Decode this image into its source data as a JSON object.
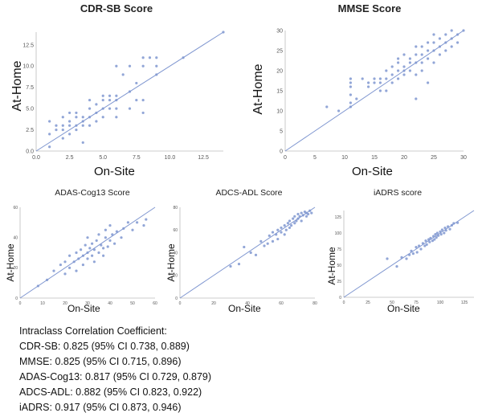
{
  "chart_data": [
    {
      "type": "scatter",
      "title": "CDR-SB Score",
      "xlabel": "On-Site",
      "ylabel": "At-Home",
      "xlim": [
        0,
        14
      ],
      "ylim": [
        0,
        14
      ],
      "xticks": [
        0,
        2.5,
        5,
        7.5,
        10,
        12.5
      ],
      "xtick_labels": [
        "0.0",
        "2.5",
        "5.0",
        "7.5",
        "10.0",
        "12.5"
      ],
      "yticks": [
        0,
        2.5,
        5,
        7.5,
        10,
        12.5
      ],
      "ytick_labels": [
        "0.0",
        "2.5",
        "5.0",
        "7.5",
        "10.0",
        "12.5"
      ],
      "identity_line": true,
      "grid": false,
      "points": [
        [
          1,
          0.5
        ],
        [
          1,
          2
        ],
        [
          1,
          3.5
        ],
        [
          1.5,
          2.5
        ],
        [
          1.5,
          3
        ],
        [
          2,
          1.5
        ],
        [
          2,
          2.5
        ],
        [
          2,
          3
        ],
        [
          2,
          4
        ],
        [
          2.5,
          2
        ],
        [
          2.5,
          3
        ],
        [
          2.5,
          3.5
        ],
        [
          2.5,
          4.5
        ],
        [
          3,
          2.5
        ],
        [
          3,
          3
        ],
        [
          3,
          4
        ],
        [
          3,
          4.5
        ],
        [
          3.5,
          1
        ],
        [
          3.5,
          3
        ],
        [
          3.5,
          3.5
        ],
        [
          3.5,
          4
        ],
        [
          4,
          3
        ],
        [
          4,
          4
        ],
        [
          4,
          5
        ],
        [
          4,
          6
        ],
        [
          4.5,
          3.5
        ],
        [
          4.5,
          4.5
        ],
        [
          4.5,
          5.5
        ],
        [
          5,
          4
        ],
        [
          5,
          5
        ],
        [
          5,
          6
        ],
        [
          5,
          6.5
        ],
        [
          5.5,
          5
        ],
        [
          5.5,
          6
        ],
        [
          5.5,
          6.5
        ],
        [
          6,
          4
        ],
        [
          6,
          5
        ],
        [
          6,
          6
        ],
        [
          6,
          6.5
        ],
        [
          6,
          10
        ],
        [
          6.5,
          9
        ],
        [
          7,
          5
        ],
        [
          7,
          7
        ],
        [
          7,
          10
        ],
        [
          7.5,
          6
        ],
        [
          7.5,
          8
        ],
        [
          8,
          4.5
        ],
        [
          8,
          6
        ],
        [
          8,
          10
        ],
        [
          8,
          11
        ],
        [
          8.5,
          11
        ],
        [
          9,
          9
        ],
        [
          9,
          10
        ],
        [
          9,
          11
        ],
        [
          11,
          11
        ],
        [
          14,
          14
        ]
      ]
    },
    {
      "type": "scatter",
      "title": "MMSE Score",
      "xlabel": "On-Site",
      "ylabel": "At-Home",
      "xlim": [
        0,
        30
      ],
      "ylim": [
        0,
        30
      ],
      "xticks": [
        0,
        5,
        10,
        15,
        20,
        25,
        30
      ],
      "xtick_labels": [
        "0",
        "5",
        "10",
        "15",
        "20",
        "25",
        "30"
      ],
      "yticks": [
        0,
        5,
        10,
        15,
        20,
        25,
        30
      ],
      "ytick_labels": [
        "0",
        "5",
        "10",
        "15",
        "20",
        "25",
        "30"
      ],
      "identity_line": true,
      "grid": false,
      "points": [
        [
          7,
          11
        ],
        [
          9,
          10
        ],
        [
          11,
          11
        ],
        [
          11,
          12
        ],
        [
          11,
          14
        ],
        [
          11,
          16
        ],
        [
          11,
          17
        ],
        [
          11,
          18
        ],
        [
          12,
          13
        ],
        [
          13,
          18
        ],
        [
          14,
          16
        ],
        [
          14,
          17
        ],
        [
          15,
          17
        ],
        [
          15,
          18
        ],
        [
          16,
          15
        ],
        [
          16,
          17
        ],
        [
          16,
          18
        ],
        [
          17,
          15
        ],
        [
          17,
          18
        ],
        [
          17,
          20
        ],
        [
          18,
          17
        ],
        [
          18,
          19
        ],
        [
          18,
          21
        ],
        [
          19,
          18
        ],
        [
          19,
          20
        ],
        [
          19,
          22
        ],
        [
          19,
          23
        ],
        [
          20,
          19
        ],
        [
          20,
          20
        ],
        [
          20,
          21
        ],
        [
          20,
          24
        ],
        [
          21,
          20
        ],
        [
          21,
          22
        ],
        [
          21,
          23
        ],
        [
          22,
          13
        ],
        [
          22,
          19
        ],
        [
          22,
          22
        ],
        [
          22,
          24
        ],
        [
          22,
          26
        ],
        [
          23,
          20
        ],
        [
          23,
          22
        ],
        [
          23,
          24
        ],
        [
          23,
          26
        ],
        [
          24,
          17
        ],
        [
          24,
          23
        ],
        [
          24,
          25
        ],
        [
          24,
          27
        ],
        [
          25,
          22
        ],
        [
          25,
          25
        ],
        [
          25,
          27
        ],
        [
          25,
          29
        ],
        [
          26,
          24
        ],
        [
          26,
          26
        ],
        [
          26,
          28
        ],
        [
          27,
          25
        ],
        [
          27,
          27
        ],
        [
          27,
          29
        ],
        [
          28,
          26
        ],
        [
          28,
          28
        ],
        [
          28,
          30
        ],
        [
          29,
          27
        ],
        [
          29,
          29
        ],
        [
          30,
          30
        ]
      ]
    },
    {
      "type": "scatter",
      "title": "ADAS-Cog13 Score",
      "xlabel": "On-Site",
      "ylabel": "At-Home",
      "xlim": [
        0,
        60
      ],
      "ylim": [
        0,
        60
      ],
      "xticks": [
        0,
        10,
        20,
        30,
        40,
        50,
        60
      ],
      "xtick_labels": [
        "0",
        "10",
        "20",
        "30",
        "40",
        "50",
        "60"
      ],
      "yticks": [
        0,
        20,
        40,
        60
      ],
      "ytick_labels": [
        "0",
        "20",
        "40",
        "60"
      ],
      "identity_line": true,
      "grid": false,
      "points": [
        [
          8,
          8
        ],
        [
          12,
          12
        ],
        [
          15,
          18
        ],
        [
          18,
          22
        ],
        [
          20,
          16
        ],
        [
          20,
          24
        ],
        [
          22,
          20
        ],
        [
          22,
          28
        ],
        [
          24,
          24
        ],
        [
          25,
          30
        ],
        [
          25,
          18
        ],
        [
          26,
          26
        ],
        [
          27,
          32
        ],
        [
          28,
          22
        ],
        [
          28,
          28
        ],
        [
          29,
          35
        ],
        [
          30,
          26
        ],
        [
          30,
          30
        ],
        [
          30,
          40
        ],
        [
          31,
          33
        ],
        [
          32,
          28
        ],
        [
          32,
          36
        ],
        [
          33,
          24
        ],
        [
          33,
          32
        ],
        [
          34,
          38
        ],
        [
          35,
          30
        ],
        [
          35,
          42
        ],
        [
          36,
          35
        ],
        [
          37,
          28
        ],
        [
          37,
          33
        ],
        [
          38,
          40
        ],
        [
          38,
          45
        ],
        [
          39,
          34
        ],
        [
          40,
          38
        ],
        [
          40,
          48
        ],
        [
          41,
          42
        ],
        [
          42,
          36
        ],
        [
          43,
          44
        ],
        [
          45,
          40
        ],
        [
          46,
          46
        ],
        [
          48,
          50
        ],
        [
          50,
          45
        ],
        [
          52,
          50
        ],
        [
          55,
          48
        ],
        [
          56,
          52
        ]
      ]
    },
    {
      "type": "scatter",
      "title": "ADCS-ADL Score",
      "xlabel": "On-Site",
      "ylabel": "At-Home",
      "xlim": [
        0,
        80
      ],
      "ylim": [
        0,
        80
      ],
      "xticks": [
        0,
        20,
        40,
        60,
        80
      ],
      "xtick_labels": [
        "0",
        "20",
        "40",
        "60",
        "80"
      ],
      "yticks": [
        0,
        20,
        40,
        60,
        80
      ],
      "ytick_labels": [
        "0",
        "20",
        "40",
        "60",
        "80"
      ],
      "identity_line": true,
      "grid": false,
      "points": [
        [
          30,
          28
        ],
        [
          35,
          30
        ],
        [
          38,
          45
        ],
        [
          42,
          40
        ],
        [
          45,
          38
        ],
        [
          48,
          50
        ],
        [
          50,
          46
        ],
        [
          52,
          48
        ],
        [
          53,
          55
        ],
        [
          55,
          50
        ],
        [
          55,
          58
        ],
        [
          57,
          56
        ],
        [
          58,
          52
        ],
        [
          58,
          60
        ],
        [
          60,
          58
        ],
        [
          60,
          62
        ],
        [
          62,
          56
        ],
        [
          62,
          64
        ],
        [
          63,
          60
        ],
        [
          64,
          66
        ],
        [
          65,
          62
        ],
        [
          65,
          68
        ],
        [
          66,
          64
        ],
        [
          67,
          70
        ],
        [
          68,
          66
        ],
        [
          68,
          72
        ],
        [
          69,
          68
        ],
        [
          70,
          70
        ],
        [
          70,
          74
        ],
        [
          71,
          72
        ],
        [
          72,
          68
        ],
        [
          72,
          75
        ],
        [
          73,
          73
        ],
        [
          74,
          76
        ],
        [
          75,
          72
        ],
        [
          75,
          75
        ],
        [
          76,
          74
        ],
        [
          77,
          77
        ],
        [
          78,
          75
        ]
      ]
    },
    {
      "type": "scatter",
      "title": "iADRS score",
      "xlabel": "On-Site",
      "ylabel": "At-Home",
      "xlim": [
        0,
        135
      ],
      "ylim": [
        0,
        135
      ],
      "xticks": [
        0,
        25,
        50,
        75,
        100,
        125
      ],
      "xtick_labels": [
        "0",
        "25",
        "50",
        "75",
        "100",
        "125"
      ],
      "yticks": [
        0,
        25,
        50,
        75,
        100,
        125
      ],
      "ytick_labels": [
        "0",
        "25",
        "50",
        "75",
        "100",
        "125"
      ],
      "identity_line": true,
      "grid": false,
      "points": [
        [
          45,
          60
        ],
        [
          55,
          48
        ],
        [
          60,
          62
        ],
        [
          65,
          60
        ],
        [
          68,
          66
        ],
        [
          70,
          72
        ],
        [
          72,
          68
        ],
        [
          75,
          78
        ],
        [
          76,
          70
        ],
        [
          78,
          80
        ],
        [
          80,
          75
        ],
        [
          82,
          84
        ],
        [
          84,
          80
        ],
        [
          85,
          88
        ],
        [
          86,
          82
        ],
        [
          88,
          90
        ],
        [
          89,
          86
        ],
        [
          90,
          92
        ],
        [
          92,
          88
        ],
        [
          93,
          95
        ],
        [
          94,
          90
        ],
        [
          95,
          98
        ],
        [
          96,
          93
        ],
        [
          97,
          100
        ],
        [
          98,
          96
        ],
        [
          100,
          102
        ],
        [
          101,
          98
        ],
        [
          102,
          105
        ],
        [
          104,
          100
        ],
        [
          105,
          108
        ],
        [
          106,
          104
        ],
        [
          108,
          110
        ],
        [
          110,
          106
        ],
        [
          112,
          112
        ],
        [
          114,
          115
        ],
        [
          118,
          116
        ]
      ]
    }
  ],
  "icc": {
    "heading": "Intraclass Correlation Coefficient:",
    "rows": [
      "CDR-SB: 0.825 (95% CI 0.738, 0.889)",
      "MMSE: 0.825 (95% CI 0.715, 0.896)",
      "ADAS-Cog13: 0.817 (95% CI 0.729, 0.879)",
      "ADCS-ADL: 0.882 (95% CI 0.823, 0.922)",
      "iADRS: 0.917 (95% CI 0.873, 0.946)"
    ]
  },
  "colors": {
    "point": "#7f96d0",
    "line": "#7f96d0",
    "axis": "#bbbbbb",
    "tick_text": "#555555"
  }
}
